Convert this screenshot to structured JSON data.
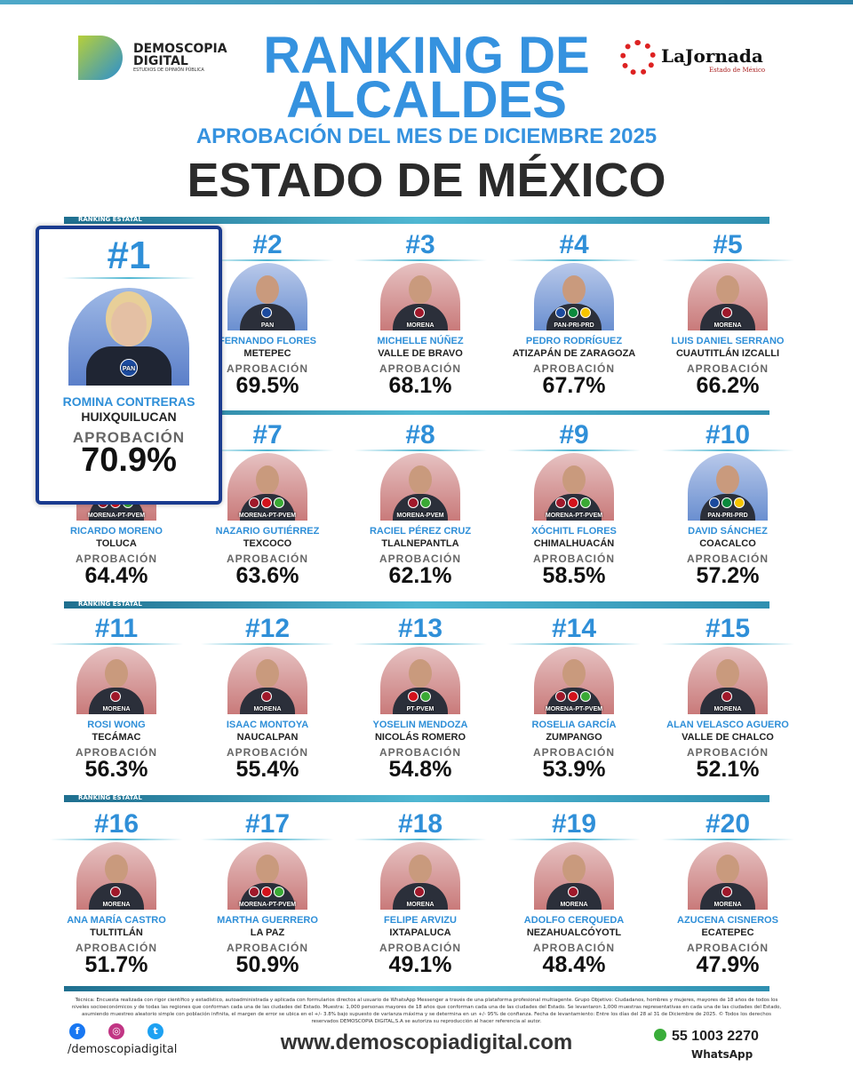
{
  "header": {
    "logo_left_line1": "DEMOSCOPIA",
    "logo_left_line2": "DIGITAL",
    "logo_left_tagline": "ESTUDIOS DE OPINIÓN PÚBLICA",
    "logo_right": "LaJornada",
    "logo_right_sub": "Estado de México",
    "title_line1": "RANKING DE",
    "title_line2": "ALCALDES",
    "subtitle": "APROBACIÓN DEL MES DE DICIEMBRE 2025",
    "state": "ESTADO DE MÉXICO"
  },
  "section_label": "RANKING ESTATAL",
  "approval_label": "APROBACIÓN",
  "colors": {
    "accent": "#2f8fd8",
    "highlight_border": "#1a3b8f",
    "bar": "#4fb7d2"
  },
  "first": {
    "rank": "#1",
    "name": "ROMINA CONTRERAS",
    "city": "HUIXQUILUCAN",
    "approval": "70.9%",
    "party": "PAN"
  },
  "mayors": [
    {
      "rank": "#2",
      "name": "FERNANDO FLORES",
      "city": "METEPEC",
      "approval": "69.5%",
      "party": "PAN"
    },
    {
      "rank": "#3",
      "name": "MICHELLE NÚÑEZ",
      "city": "VALLE DE BRAVO",
      "approval": "68.1%",
      "party": "MORENA"
    },
    {
      "rank": "#4",
      "name": "PEDRO RODRÍGUEZ",
      "city": "ATIZAPÁN DE ZARAGOZA",
      "approval": "67.7%",
      "party": "PAN-PRI-PRD"
    },
    {
      "rank": "#5",
      "name": "LUIS DANIEL SERRANO",
      "city": "CUAUTITLÁN IZCALLI",
      "approval": "66.2%",
      "party": "MORENA"
    },
    {
      "rank": "",
      "name": "RICARDO MORENO",
      "city": "TOLUCA",
      "approval": "64.4%",
      "party": "MORENA-PT-PVEM"
    },
    {
      "rank": "#7",
      "name": "NAZARIO GUTIÉRREZ",
      "city": "TEXCOCO",
      "approval": "63.6%",
      "party": "MORENA-PT-PVEM"
    },
    {
      "rank": "#8",
      "name": "RACIEL PÉREZ CRUZ",
      "city": "TLALNEPANTLA",
      "approval": "62.1%",
      "party": "MORENA-PVEM"
    },
    {
      "rank": "#9",
      "name": "XÓCHITL FLORES",
      "city": "CHIMALHUACÁN",
      "approval": "58.5%",
      "party": "MORENA-PT-PVEM"
    },
    {
      "rank": "#10",
      "name": "DAVID SÁNCHEZ",
      "city": "COACALCO",
      "approval": "57.2%",
      "party": "PAN-PRI-PRD"
    },
    {
      "rank": "#11",
      "name": "ROSI WONG",
      "city": "TECÁMAC",
      "approval": "56.3%",
      "party": "MORENA"
    },
    {
      "rank": "#12",
      "name": "ISAAC MONTOYA",
      "city": "NAUCALPAN",
      "approval": "55.4%",
      "party": "MORENA"
    },
    {
      "rank": "#13",
      "name": "YOSELIN MENDOZA",
      "city": "NICOLÁS ROMERO",
      "approval": "54.8%",
      "party": "PT-PVEM"
    },
    {
      "rank": "#14",
      "name": "ROSELIA GARCÍA",
      "city": "ZUMPANGO",
      "approval": "53.9%",
      "party": "MORENA-PT-PVEM"
    },
    {
      "rank": "#15",
      "name": "ALAN VELASCO AGUERO",
      "city": "VALLE DE CHALCO",
      "approval": "52.1%",
      "party": "MORENA"
    },
    {
      "rank": "#16",
      "name": "ANA MARÍA CASTRO",
      "city": "TULTITLÁN",
      "approval": "51.7%",
      "party": "MORENA"
    },
    {
      "rank": "#17",
      "name": "MARTHA GUERRERO",
      "city": "LA PAZ",
      "approval": "50.9%",
      "party": "MORENA-PT-PVEM"
    },
    {
      "rank": "#18",
      "name": "FELIPE ARVIZU",
      "city": "IXTAPALUCA",
      "approval": "49.1%",
      "party": "MORENA"
    },
    {
      "rank": "#19",
      "name": "ADOLFO CERQUEDA",
      "city": "NEZAHUALCÓYOTL",
      "approval": "48.4%",
      "party": "MORENA"
    },
    {
      "rank": "#20",
      "name": "AZUCENA CISNEROS",
      "city": "ECATEPEC",
      "approval": "47.9%",
      "party": "MORENA"
    }
  ],
  "footer": {
    "methodology": "Técnica: Encuesta realizada con rigor científico y estadístico, autoadministrada y aplicada con formularios directos al usuario de WhatsApp Messenger a través de una plataforma profesional multiagente. Grupo Objetivo: Ciudadanos, hombres y mujeres, mayores de 18 años de todos los niveles socioeconómicos y de todas las regiones que conforman cada una de las ciudades del Estado. Muestra: 1,000 personas mayores de 18 años que conforman cada una de las ciudades del Estado. Se levantaron 1,000 muestras representativas en cada una de las ciudades del Estado, asumiendo muestreo aleatorio simple con población infinita, el margen de error se ubica en el +/- 3.8% bajo supuesto de varianza máxima y se determina en un +/- 95% de confianza. Fecha de levantamiento: Entre los días del 28 al 31 de Diciembre de 2025. © Todos los derechos reservados DEMOSCOPIA DIGITAL,S.A se autoriza su reproducción al hacer referencia al autor.",
    "social_handle": "/demoscopiadigital",
    "website": "www.demoscopiadigital.com",
    "phone": "55 1003 2270",
    "phone_label": "WhatsApp"
  }
}
